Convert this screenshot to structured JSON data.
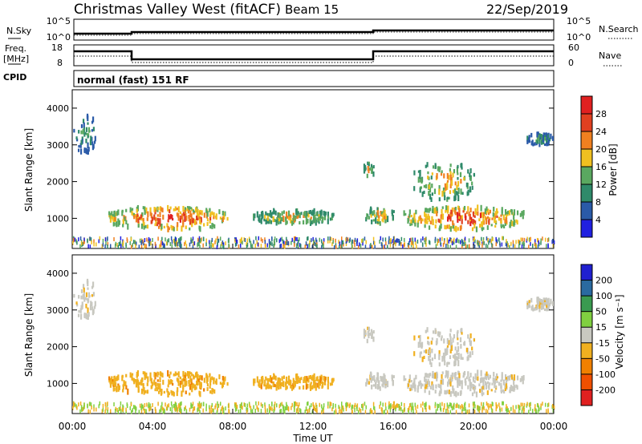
{
  "title": "Christmas Valley West (fitACF)",
  "beam": "Beam 15",
  "date": "22/Sep/2019",
  "nsky": {
    "label": "N.Sky",
    "ticks": [
      "10^5",
      "10^0"
    ],
    "right_ticks": [
      "10^5",
      "10^0"
    ],
    "right_label": "N.Search"
  },
  "freq": {
    "label_lines": [
      "Freq.",
      "[MHz]"
    ],
    "ticks": [
      "18",
      "8"
    ],
    "right_ticks": [
      "60",
      "0"
    ],
    "right_label": "Nave"
  },
  "cpid": {
    "label": "CPID",
    "text": "normal (fast) 151 RF"
  },
  "x_ticks": [
    "00:00",
    "04:00",
    "08:00",
    "12:00",
    "16:00",
    "20:00",
    "00:00"
  ],
  "x_label": "Time UT",
  "y_label": "Slant Range [km]",
  "y_ticks": [
    "1000",
    "2000",
    "3000",
    "4000"
  ],
  "power": {
    "colorbar_label": "Power [dB]",
    "ticks": [
      "4",
      "8",
      "12",
      "16",
      "20",
      "24",
      "28"
    ],
    "colors": [
      "#2020e0",
      "#2a5aa8",
      "#2f8a6a",
      "#5aa860",
      "#f0c020",
      "#f08020",
      "#e04020",
      "#e02020"
    ]
  },
  "velocity": {
    "colorbar_label": "Velocity [m s⁻¹]",
    "ticks": [
      "200",
      "100",
      "50",
      "15",
      "-15",
      "-50",
      "-100",
      "-200"
    ],
    "colors": [
      "#2020d0",
      "#2a6aa0",
      "#3a9a50",
      "#80d040",
      "#c8c8c0",
      "#f0b020",
      "#f08000",
      "#f05000",
      "#e02020"
    ]
  },
  "chart_data": {
    "type": "heatmap",
    "x_range_hours": [
      0,
      24
    ],
    "y_range_km": [
      180,
      4500
    ],
    "freq_mhz_steps": [
      [
        0,
        13
      ],
      [
        3,
        10
      ],
      [
        14.8,
        13
      ],
      [
        24,
        13
      ]
    ],
    "echo_regions": [
      {
        "t": [
          1.8,
          7.8
        ],
        "r": [
          700,
          1300
        ],
        "power": "high",
        "velocity": "-15 to -50"
      },
      {
        "t": [
          9.0,
          13.0
        ],
        "r": [
          850,
          1200
        ],
        "power": "medium",
        "velocity": "-15 to -50"
      },
      {
        "t": [
          14.6,
          16.0
        ],
        "r": [
          850,
          1300
        ],
        "power": "medium",
        "velocity": "-15 to 15"
      },
      {
        "t": [
          16.5,
          22.5
        ],
        "r": [
          700,
          1300
        ],
        "power": "high",
        "velocity": "-15 to 15"
      },
      {
        "t": [
          17.0,
          20.0
        ],
        "r": [
          1500,
          2500
        ],
        "power": "medium",
        "velocity": "-15 to 15"
      },
      {
        "t": [
          0,
          1.2
        ],
        "r": [
          2800,
          3800
        ],
        "power": "low",
        "velocity": "-15 to 15"
      },
      {
        "t": [
          14.5,
          15.0
        ],
        "r": [
          2100,
          2500
        ],
        "power": "medium",
        "velocity": "-15 to 15"
      },
      {
        "t": [
          22.5,
          24.0
        ],
        "r": [
          3000,
          3300
        ],
        "power": "low",
        "velocity": "-15 to 15"
      }
    ]
  }
}
